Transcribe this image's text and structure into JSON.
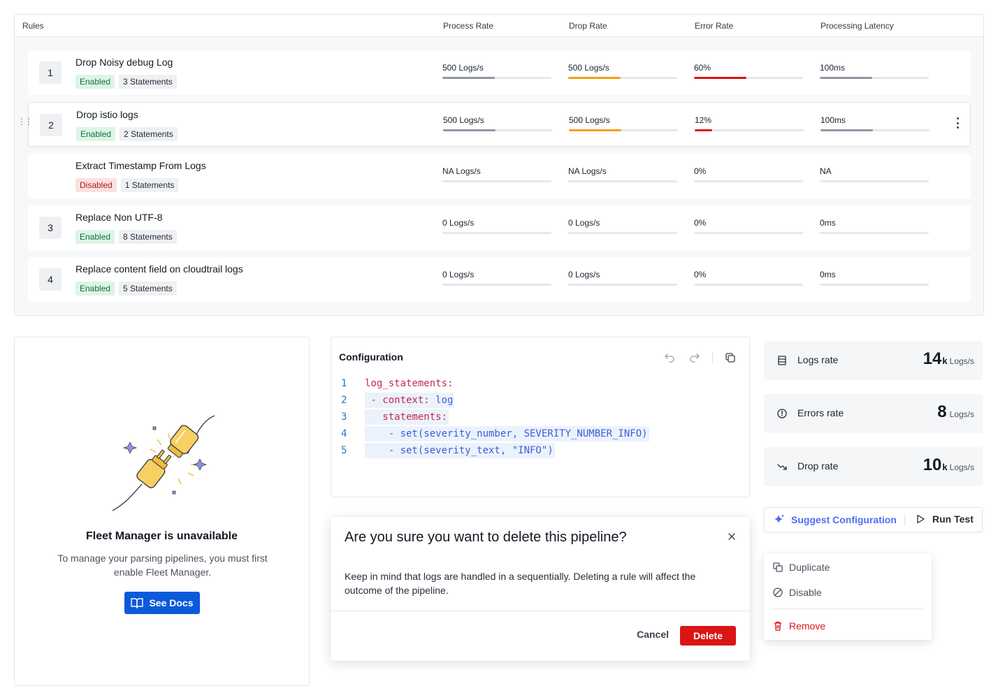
{
  "rules_table": {
    "headers": {
      "rules": "Rules",
      "process_rate": "Process Rate",
      "drop_rate": "Drop Rate",
      "error_rate": "Error Rate",
      "latency": "Processing Latency"
    },
    "rows": [
      {
        "index": "1",
        "name": "Drop Noisy debug Log",
        "status": "Enabled",
        "statements": "3 Statements",
        "process_rate": {
          "text": "500 Logs/s",
          "fill": 0.48
        },
        "drop_rate": {
          "text": "500 Logs/s",
          "fill": 0.48
        },
        "error_rate": {
          "text": "60%",
          "fill": 0.48
        },
        "latency": {
          "text": "100ms",
          "fill": 0.48
        }
      },
      {
        "index": "2",
        "name": "Drop istio logs",
        "status": "Enabled",
        "statements": "2 Statements",
        "process_rate": {
          "text": "500 Logs/s",
          "fill": 0.48
        },
        "drop_rate": {
          "text": "500 Logs/s",
          "fill": 0.48
        },
        "error_rate": {
          "text": "12%",
          "fill": 0.16
        },
        "latency": {
          "text": "100ms",
          "fill": 0.48
        }
      },
      {
        "index": "",
        "name": "Extract Timestamp From Logs",
        "status": "Disabled",
        "statements": "1 Statements",
        "process_rate": {
          "text": "NA Logs/s",
          "fill": 0
        },
        "drop_rate": {
          "text": "NA Logs/s",
          "fill": 0
        },
        "error_rate": {
          "text": "0%",
          "fill": 0
        },
        "latency": {
          "text": "NA",
          "fill": 0
        }
      },
      {
        "index": "3",
        "name": "Replace Non UTF-8",
        "status": "Enabled",
        "statements": "8 Statements",
        "process_rate": {
          "text": "0 Logs/s",
          "fill": 0
        },
        "drop_rate": {
          "text": "0 Logs/s",
          "fill": 0
        },
        "error_rate": {
          "text": "0%",
          "fill": 0
        },
        "latency": {
          "text": "0ms",
          "fill": 0
        }
      },
      {
        "index": "4",
        "name": "Replace content field on cloudtrail logs",
        "status": "Enabled",
        "statements": "5 Statements",
        "process_rate": {
          "text": "0 Logs/s",
          "fill": 0
        },
        "drop_rate": {
          "text": "0 Logs/s",
          "fill": 0
        },
        "error_rate": {
          "text": "0%",
          "fill": 0
        },
        "latency": {
          "text": "0ms",
          "fill": 0
        }
      }
    ],
    "colors": {
      "process": "#8f96a3",
      "drop": "#f5a00f",
      "error": "#db1414",
      "latency": "#8f96a3"
    }
  },
  "fleet_manager": {
    "title": "Fleet Manager is unavailable",
    "description": "To manage your parsing pipelines, you must first enable Fleet Manager.",
    "button": "See Docs",
    "button_icon": "book-icon"
  },
  "configuration": {
    "title": "Configuration",
    "lines": [
      {
        "n": "1",
        "parts": [
          {
            "t": "log_statements:",
            "c": "key"
          }
        ],
        "hl": false
      },
      {
        "n": "2",
        "parts": [
          {
            "t": " - context: ",
            "c": "key"
          },
          {
            "t": "log",
            "c": "val"
          }
        ],
        "hl": true
      },
      {
        "n": "3",
        "parts": [
          {
            "t": "   statements:",
            "c": "key"
          }
        ],
        "hl": true
      },
      {
        "n": "4",
        "parts": [
          {
            "t": "    - set(severity_number, SEVERITY_NUMBER_INFO)",
            "c": "val"
          }
        ],
        "hl": true
      },
      {
        "n": "5",
        "parts": [
          {
            "t": "    - set(severity_text, \"INFO\")",
            "c": "val"
          }
        ],
        "hl": true
      }
    ]
  },
  "delete_modal": {
    "title": "Are you sure you want to delete this pipeline?",
    "body": "Keep in mind that logs are handled in a sequentially. Deleting a rule will affect the outcome of the pipeline.",
    "cancel": "Cancel",
    "confirm": "Delete"
  },
  "stats": [
    {
      "label": "Logs rate",
      "value": "14",
      "suffix": "k",
      "unit": "Logs/s",
      "icon": "list-icon"
    },
    {
      "label": "Errors rate",
      "value": "8",
      "suffix": "",
      "unit": "Logs/s",
      "icon": "alert-circle-icon"
    },
    {
      "label": "Drop rate",
      "value": "10",
      "suffix": "k",
      "unit": "Logs/s",
      "icon": "trend-down-icon"
    }
  ],
  "actions": {
    "suggest": "Suggest Configuration",
    "run": "Run Test"
  },
  "context_menu": {
    "duplicate": "Duplicate",
    "disable": "Disable",
    "remove": "Remove"
  }
}
